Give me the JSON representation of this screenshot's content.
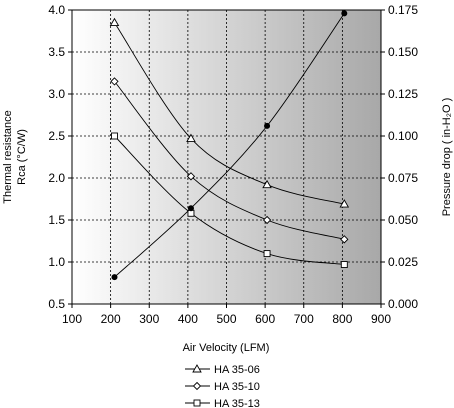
{
  "chart_data": {
    "type": "line",
    "xlabel": "Air Velocity (LFM)",
    "ylabel_left_line1": "Thermal resistance",
    "ylabel_left_line2": "Rca (°C/W)",
    "ylabel_right": "Pressure drop ( in-H₂O )",
    "xlim": [
      100,
      900
    ],
    "xticks": [
      100,
      200,
      300,
      400,
      500,
      600,
      700,
      800,
      900
    ],
    "ylim_left": [
      0.5,
      4.0
    ],
    "yticks_left": [
      0.5,
      1.0,
      1.5,
      2.0,
      2.5,
      3.0,
      3.5,
      4.0
    ],
    "ylim_right": [
      0.0,
      0.175
    ],
    "yticks_right": [
      0.0,
      0.025,
      0.05,
      0.075,
      0.1,
      0.125,
      0.15,
      0.175
    ],
    "grid": true,
    "legend_position": "bottom-center",
    "background_gradient": [
      "#ffffff",
      "#a8a8a8"
    ],
    "series": [
      {
        "name": "HA 35-06",
        "axis": "left",
        "marker": "triangle",
        "x": [
          210,
          408,
          605,
          805
        ],
        "y": [
          3.85,
          2.47,
          1.92,
          1.69
        ]
      },
      {
        "name": "HA 35-10",
        "axis": "left",
        "marker": "diamond",
        "x": [
          210,
          408,
          605,
          805
        ],
        "y": [
          3.15,
          2.02,
          1.5,
          1.27
        ]
      },
      {
        "name": "HA 35-13",
        "axis": "left",
        "marker": "square",
        "x": [
          210,
          408,
          605,
          805
        ],
        "y": [
          2.5,
          1.58,
          1.1,
          0.97
        ]
      },
      {
        "axis": "right",
        "marker": "filled-circle",
        "x": [
          210,
          408,
          605,
          805
        ],
        "y": [
          0.016,
          0.057,
          0.106,
          0.173
        ]
      }
    ]
  }
}
